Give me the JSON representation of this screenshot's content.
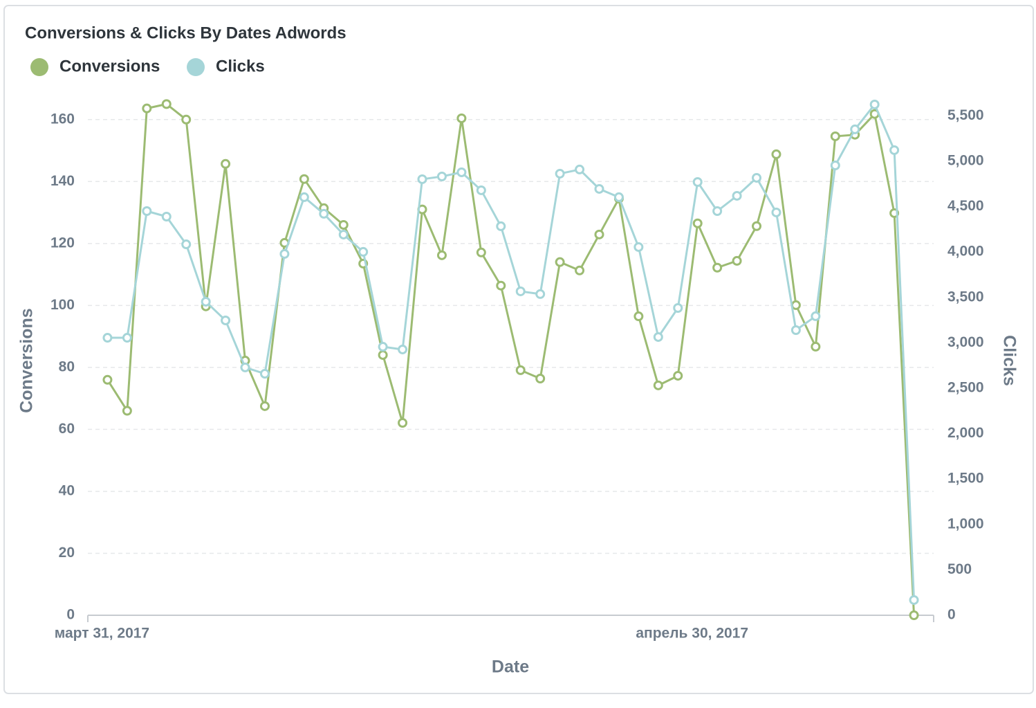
{
  "chart_data": {
    "type": "line",
    "title": "Conversions & Clicks By Dates Adwords",
    "x_label": "Date",
    "y_label": "Conversions",
    "y2_label": "Clicks",
    "x": [
      "2017-03-31",
      "2017-04-01",
      "2017-04-02",
      "2017-04-03",
      "2017-04-04",
      "2017-04-05",
      "2017-04-06",
      "2017-04-07",
      "2017-04-08",
      "2017-04-09",
      "2017-04-10",
      "2017-04-11",
      "2017-04-12",
      "2017-04-13",
      "2017-04-14",
      "2017-04-15",
      "2017-04-16",
      "2017-04-17",
      "2017-04-18",
      "2017-04-19",
      "2017-04-20",
      "2017-04-21",
      "2017-04-22",
      "2017-04-23",
      "2017-04-24",
      "2017-04-25",
      "2017-04-26",
      "2017-04-27",
      "2017-04-28",
      "2017-04-29",
      "2017-04-30",
      "2017-05-01",
      "2017-05-02",
      "2017-05-03",
      "2017-05-04",
      "2017-05-05",
      "2017-05-06",
      "2017-05-07",
      "2017-05-08",
      "2017-05-09",
      "2017-05-10",
      "2017-05-11"
    ],
    "xlim": [
      "2017-03-30",
      "2017-05-12"
    ],
    "xticks": [
      {
        "value": "2017-03-31",
        "label": "март 31, 2017"
      },
      {
        "value": "2017-04-30",
        "label": "апрель 30, 2017"
      }
    ],
    "ylim": [
      0,
      170
    ],
    "yticks": [
      0,
      20,
      40,
      60,
      80,
      100,
      120,
      140,
      160
    ],
    "y2lim": [
      0,
      5800
    ],
    "y2ticks": [
      0,
      500,
      {
        "value": 1000,
        "label": "1,000"
      },
      {
        "value": 1500,
        "label": "1,500"
      },
      {
        "value": 2000,
        "label": "2,000"
      },
      {
        "value": 2500,
        "label": "2,500"
      },
      {
        "value": 3000,
        "label": "3,000"
      },
      {
        "value": 3500,
        "label": "3,500"
      },
      {
        "value": 4000,
        "label": "4,000"
      },
      {
        "value": 4500,
        "label": "4,500"
      },
      {
        "value": 5000,
        "label": "5,000"
      },
      {
        "value": 5500,
        "label": "5,500"
      }
    ],
    "grid": true,
    "series": [
      {
        "name": "Conversions",
        "color": "#9cbb72",
        "axis": "y",
        "values": [
          76,
          66,
          163.6,
          165,
          160,
          99.7,
          145.7,
          82.2,
          67.5,
          120.2,
          140.8,
          131.4,
          126,
          113.5,
          84,
          62.1,
          131,
          116.2,
          160.4,
          117.1,
          106.4,
          79.1,
          76.4,
          114,
          111.3,
          122.9,
          134.5,
          96.5,
          74.2,
          77.3,
          126.5,
          112.2,
          114.4,
          125.6,
          148.8,
          100.1,
          86.7,
          154.6,
          155.1,
          161.8,
          129.8,
          0
        ]
      },
      {
        "name": "Clicks",
        "color": "#a5d5d8",
        "axis": "y2",
        "values": [
          3056,
          3056,
          4451,
          4390,
          4085,
          3453,
          3247,
          2729,
          2660,
          3979,
          4604,
          4421,
          4192,
          4002,
          2957,
          2927,
          4802,
          4832,
          4878,
          4680,
          4284,
          3567,
          3537,
          4863,
          4909,
          4695,
          4604,
          4055,
          3064,
          3384,
          4771,
          4451,
          4619,
          4817,
          4436,
          3140,
          3293,
          4954,
          5351,
          5625,
          5122,
          168
        ]
      }
    ]
  }
}
